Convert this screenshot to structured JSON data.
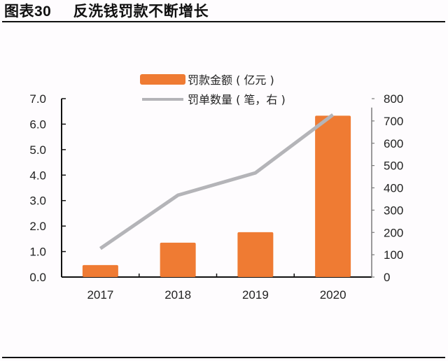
{
  "figure": {
    "label": "图表",
    "number": "30",
    "title": "反洗钱罚款不断增长"
  },
  "colors": {
    "bar": "#ef7b33",
    "line": "#b4b4b8",
    "axis_left": "#111111",
    "axis_right": "#7a7a7a"
  },
  "chart_data": {
    "type": "bar+line",
    "title": "反洗钱罚款不断增长",
    "categories": [
      "2017",
      "2018",
      "2019",
      "2020"
    ],
    "series": [
      {
        "name": "罚款金额(亿元)",
        "type": "bar",
        "axis": "left",
        "values": [
          0.47,
          1.35,
          1.76,
          6.33
        ]
      },
      {
        "name": "罚单数量(笔，右)",
        "type": "line",
        "axis": "right",
        "values": [
          128,
          367,
          467,
          728
        ]
      }
    ],
    "y_left": {
      "range": [
        0,
        7
      ],
      "ticks": [
        "0.0",
        "1.0",
        "2.0",
        "3.0",
        "4.0",
        "5.0",
        "6.0",
        "7.0"
      ]
    },
    "y_right": {
      "range": [
        0,
        800
      ],
      "ticks": [
        "0",
        "100",
        "200",
        "300",
        "400",
        "500",
        "600",
        "700",
        "800"
      ]
    },
    "xlabel": "",
    "ylabel": "",
    "grid": false,
    "legend": {
      "placement": "top-center",
      "entries": [
        {
          "label": "罚款金额 ( 亿元 )",
          "kind": "bar"
        },
        {
          "label": "罚单数量 ( 笔，右 )",
          "kind": "line"
        }
      ]
    }
  }
}
